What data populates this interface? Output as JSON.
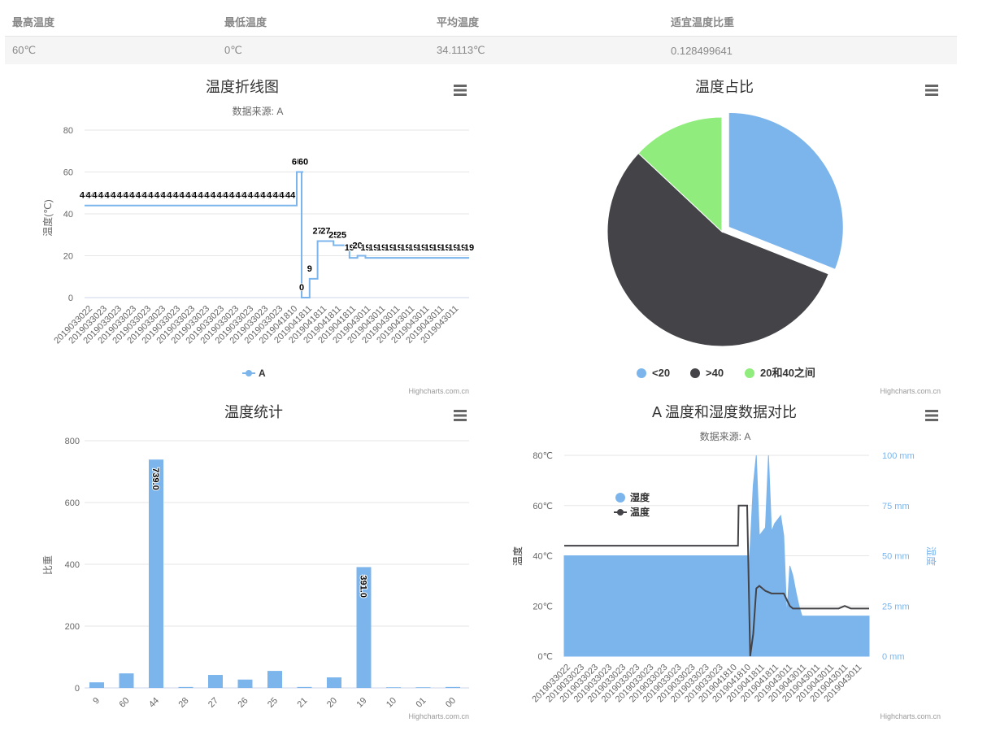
{
  "stats": {
    "headers": [
      "最高温度",
      "最低温度",
      "平均温度",
      "适宜温度比重"
    ],
    "values": [
      "60℃",
      "0℃",
      "34.1113℃",
      "0.128499641"
    ]
  },
  "credits": "Highcharts.com.cn",
  "colors": {
    "blue": "#7cb5ec",
    "dark": "#434348",
    "green": "#90ed7d",
    "grid": "#e6e6e6",
    "axisBlue": "#7cb5ec"
  },
  "chart_data": [
    {
      "type": "line",
      "title": "温度折线图",
      "subtitle": "数据来源: A",
      "ylabel": "温度(℃)",
      "ylim": [
        0,
        80
      ],
      "yticks": [
        0,
        20,
        40,
        60,
        80
      ],
      "xticks": [
        "2019033022",
        "2019033023",
        "2019033023",
        "2019033023",
        "2019033023",
        "2019033023",
        "2019033023",
        "2019033023",
        "2019033023",
        "2019033023",
        "2019033023",
        "2019033023",
        "2019033023",
        "2019033023",
        "2019041810",
        "2019041811",
        "2019041811",
        "2019041811",
        "2019041811",
        "2019043011",
        "2019043011",
        "2019043011",
        "2019043011",
        "2019043011",
        "2019043011",
        "2019043011"
      ],
      "series": [
        {
          "name": "A",
          "values": [
            44,
            44,
            44,
            44,
            44,
            44,
            44,
            44,
            44,
            44,
            44,
            44,
            44,
            44,
            44,
            44,
            44,
            44,
            44,
            44,
            44,
            44,
            44,
            44,
            44,
            44,
            44,
            44,
            44,
            44,
            44,
            44,
            44,
            44,
            60,
            60,
            0,
            9,
            27,
            27,
            25,
            25,
            19,
            20,
            19,
            19,
            19,
            19,
            19,
            19,
            19,
            19,
            19,
            19,
            19,
            19,
            19,
            19
          ],
          "labels": [
            "44",
            "44",
            "44",
            "44",
            "44",
            "44",
            "44",
            "44",
            "44",
            "44",
            "44",
            "44",
            "44",
            "44",
            "44",
            "44",
            "44",
            "44",
            "44",
            "44",
            "44",
            "44",
            "44",
            "44",
            "44",
            "44",
            "44",
            "44",
            "44",
            "44",
            "44",
            "44",
            "44",
            "44",
            "60",
            "60",
            "0",
            "9",
            "27",
            "27",
            "25",
            "25",
            "19",
            "20",
            "19",
            "19",
            "19",
            "19",
            "19",
            "19",
            "19",
            "19",
            "19",
            "19",
            "19",
            "19",
            "19",
            "19"
          ]
        }
      ]
    },
    {
      "type": "pie",
      "title": "温度占比",
      "series": [
        {
          "name": "<20",
          "value": 31,
          "color": "#7cb5ec",
          "sliced": true
        },
        {
          "name": ">40",
          "value": 56,
          "color": "#434348"
        },
        {
          "name": "20和40之间",
          "value": 13,
          "color": "#90ed7d"
        }
      ]
    },
    {
      "type": "bar",
      "title": "温度统计",
      "ylabel": "比重",
      "ylim": [
        0,
        800
      ],
      "yticks": [
        0,
        200,
        400,
        600,
        800
      ],
      "categories": [
        "9",
        "60",
        "44",
        "28",
        "27",
        "26",
        "25",
        "21",
        "20",
        "19",
        "10",
        "01",
        "00"
      ],
      "values": [
        18,
        47,
        739,
        3,
        42,
        27,
        55,
        3,
        34,
        391,
        2,
        2,
        3
      ],
      "data_labels": {
        "44": "739.0",
        "19": "391.0"
      }
    },
    {
      "type": "area",
      "title": "A 温度和湿度数据对比",
      "subtitle": "数据来源: A",
      "ylabel_left": "温度",
      "ylabel_right": "湿度",
      "yticks_left": [
        "0℃",
        "20℃",
        "40℃",
        "60℃",
        "80℃"
      ],
      "yticks_right": [
        "0 mm",
        "25 mm",
        "50 mm",
        "75 mm",
        "100 mm"
      ],
      "xticks": [
        "2019033022",
        "2019033023",
        "2019033023",
        "2019033023",
        "2019033023",
        "2019033023",
        "2019033023",
        "2019033023",
        "2019033023",
        "2019033023",
        "2019033023",
        "2019033023",
        "2019041810",
        "2019041810",
        "2019041811",
        "2019041811",
        "2019043011",
        "2019043011",
        "2019043011",
        "2019043011",
        "2019043011",
        "2019043011"
      ],
      "legend": [
        "湿度",
        "温度"
      ],
      "series": [
        {
          "name": "湿度",
          "x": [
            0,
            0.6,
            0.605,
            0.62,
            0.63,
            0.64,
            0.65,
            0.66,
            0.67,
            0.68,
            0.69,
            0.7,
            0.71,
            0.72,
            0.73,
            0.74,
            0.75,
            0.76,
            0.77,
            0.78,
            0.785,
            0.79,
            0.8,
            0.81,
            0.82,
            0.83,
            0.84,
            0.85,
            1.0
          ],
          "values": [
            50,
            50,
            40,
            85,
            100,
            60,
            62,
            64,
            100,
            62,
            66,
            68,
            70,
            60,
            20,
            45,
            40,
            32,
            25,
            20,
            20,
            20,
            20,
            20,
            20,
            20,
            20,
            20,
            20
          ]
        },
        {
          "name": "温度",
          "x": [
            0,
            0.53,
            0.57,
            0.572,
            0.575,
            0.58,
            0.6,
            0.61,
            0.62,
            0.63,
            0.64,
            0.65,
            0.66,
            0.68,
            0.7,
            0.72,
            0.74,
            0.75,
            0.8,
            0.85,
            0.9,
            0.92,
            0.94,
            1.0
          ],
          "values": [
            44,
            44,
            44,
            60,
            60,
            60,
            60,
            0,
            9,
            27,
            28,
            27,
            26,
            25,
            25,
            25,
            20,
            19,
            19,
            19,
            19,
            20,
            19,
            19
          ]
        }
      ]
    }
  ]
}
